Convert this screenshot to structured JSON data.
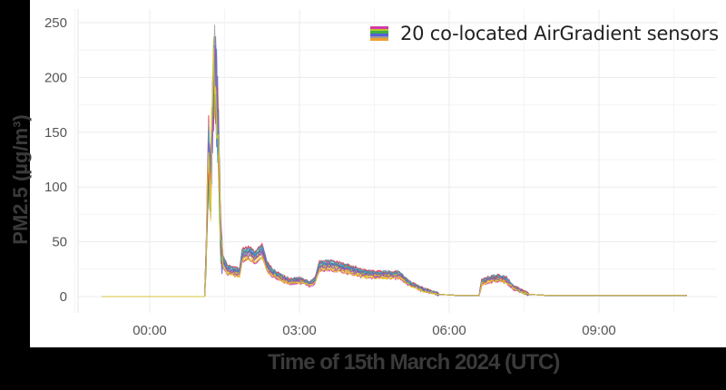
{
  "chart_data": {
    "type": "line",
    "title": "",
    "xlabel": "Time of 15th March 2024 (UTC)",
    "ylabel": "PM2.5 (µg/m³)",
    "ylim": [
      0,
      250
    ],
    "yticks": [
      0,
      50,
      100,
      150,
      200,
      250
    ],
    "xticks": [
      "00:00",
      "03:00",
      "06:00",
      "09:00"
    ],
    "xtick_hours": [
      0,
      3,
      6,
      9
    ],
    "grid": true,
    "legend": {
      "position": "top-right",
      "entries": [
        "20 co-located AirGradient sensors"
      ]
    },
    "series_count": 20,
    "series_colors": [
      "#d63aa8",
      "#b7c52a",
      "#3cb043",
      "#5a5fd6",
      "#9a9a9a",
      "#f0a030",
      "#e8334a",
      "#2aa9c9",
      "#8a4fc9",
      "#e6d222"
    ],
    "x_unit": "hours since 00:00 UTC",
    "x": [
      -0.95,
      1.1,
      1.13,
      1.18,
      1.22,
      1.26,
      1.3,
      1.34,
      1.38,
      1.42,
      1.47,
      1.55,
      1.7,
      1.8,
      1.85,
      2.0,
      2.1,
      2.25,
      2.35,
      2.45,
      2.6,
      2.8,
      3.0,
      3.2,
      3.3,
      3.4,
      3.6,
      4.0,
      4.3,
      4.6,
      5.0,
      5.2,
      5.5,
      5.8,
      6.2,
      6.6,
      6.65,
      6.8,
      7.0,
      7.15,
      7.3,
      7.6,
      8.0,
      9.0,
      10.0,
      10.76
    ],
    "values": [
      0,
      0,
      40,
      150,
      110,
      200,
      240,
      210,
      160,
      60,
      32,
      25,
      23,
      22,
      38,
      40,
      36,
      42,
      28,
      22,
      18,
      14,
      15,
      12,
      14,
      28,
      29,
      25,
      21,
      20,
      20,
      12,
      6,
      2,
      1,
      1,
      13,
      16,
      17,
      15,
      8,
      2,
      1,
      1,
      1,
      1
    ]
  },
  "legend": {
    "label": "20 co-located AirGradient sensors",
    "swatch_colors": [
      "#d63aa8",
      "#b7c52a",
      "#3cb043",
      "#5a5fd6",
      "#9a9a9a",
      "#f0a030"
    ]
  },
  "axes": {
    "xlabel": "Time of 15th March 2024 (UTC)",
    "ylabel": "PM2.5 (µg/m³)"
  }
}
